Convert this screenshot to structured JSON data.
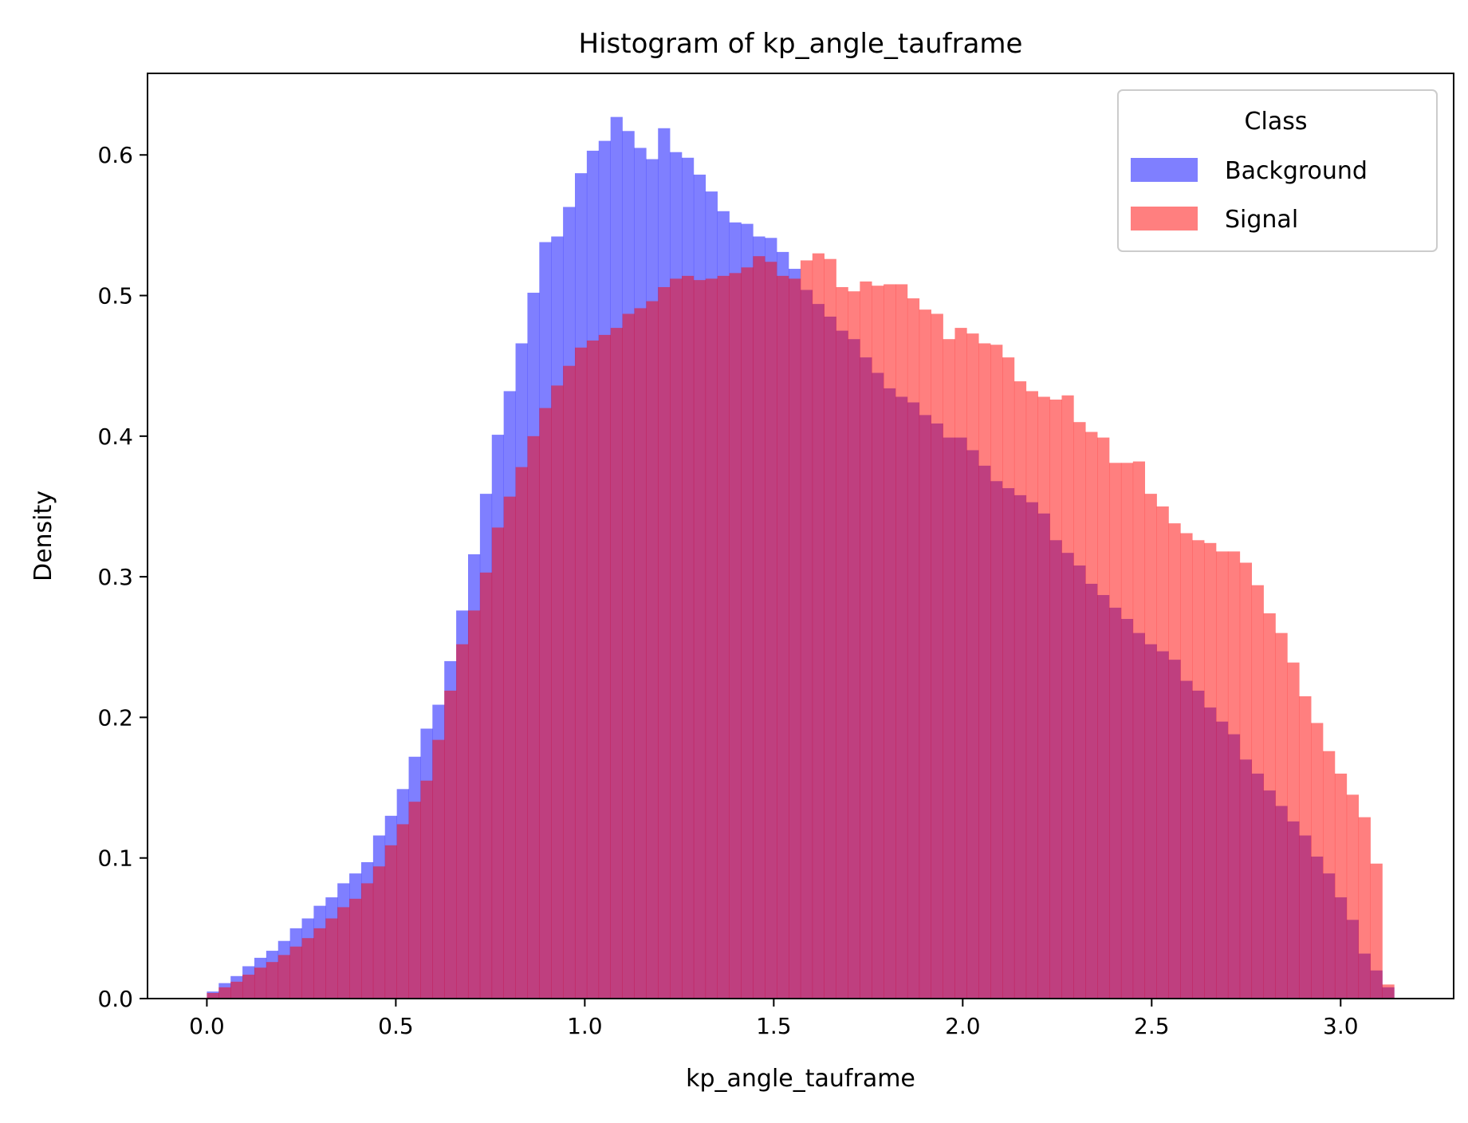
{
  "chart_data": {
    "type": "histogram",
    "title": "Histogram of kp_angle_tauframe",
    "xlabel": "kp_angle_tauframe",
    "ylabel": "Density",
    "xlim": [
      -0.157,
      3.299
    ],
    "ylim": [
      0,
      0.658
    ],
    "xticks": [
      0.0,
      0.5,
      1.0,
      1.5,
      2.0,
      2.5,
      3.0
    ],
    "xtick_labels": [
      "0.0",
      "0.5",
      "1.0",
      "1.5",
      "2.0",
      "2.5",
      "3.0"
    ],
    "yticks": [
      0.0,
      0.1,
      0.2,
      0.3,
      0.4,
      0.5,
      0.6
    ],
    "ytick_labels": [
      "0.0",
      "0.1",
      "0.2",
      "0.3",
      "0.4",
      "0.5",
      "0.6"
    ],
    "grid": false,
    "legend": {
      "title": "Class",
      "position": "top-right"
    },
    "bins": {
      "start": 0.0,
      "end": 3.1416,
      "count": 100
    },
    "series": [
      {
        "name": "Background",
        "color": "#0000ff",
        "alpha": 0.5,
        "values": [
          0.005,
          0.011,
          0.016,
          0.023,
          0.029,
          0.034,
          0.041,
          0.05,
          0.057,
          0.066,
          0.072,
          0.082,
          0.089,
          0.097,
          0.116,
          0.13,
          0.149,
          0.172,
          0.192,
          0.209,
          0.24,
          0.276,
          0.316,
          0.359,
          0.401,
          0.432,
          0.466,
          0.502,
          0.538,
          0.542,
          0.563,
          0.587,
          0.603,
          0.61,
          0.627,
          0.617,
          0.605,
          0.597,
          0.619,
          0.602,
          0.598,
          0.586,
          0.574,
          0.56,
          0.552,
          0.551,
          0.542,
          0.541,
          0.531,
          0.519,
          0.504,
          0.494,
          0.485,
          0.475,
          0.469,
          0.456,
          0.445,
          0.434,
          0.428,
          0.424,
          0.415,
          0.409,
          0.399,
          0.399,
          0.39,
          0.379,
          0.368,
          0.363,
          0.358,
          0.353,
          0.345,
          0.326,
          0.317,
          0.308,
          0.295,
          0.287,
          0.278,
          0.27,
          0.26,
          0.252,
          0.247,
          0.241,
          0.226,
          0.219,
          0.207,
          0.197,
          0.188,
          0.17,
          0.16,
          0.148,
          0.137,
          0.126,
          0.116,
          0.101,
          0.089,
          0.072,
          0.056,
          0.032,
          0.02,
          0.008
        ]
      },
      {
        "name": "Signal",
        "color": "#ff0000",
        "alpha": 0.5,
        "values": [
          0.004,
          0.008,
          0.012,
          0.017,
          0.022,
          0.026,
          0.031,
          0.037,
          0.043,
          0.05,
          0.057,
          0.065,
          0.071,
          0.082,
          0.094,
          0.109,
          0.124,
          0.14,
          0.155,
          0.184,
          0.219,
          0.252,
          0.276,
          0.303,
          0.335,
          0.357,
          0.378,
          0.4,
          0.42,
          0.436,
          0.45,
          0.463,
          0.468,
          0.472,
          0.477,
          0.487,
          0.491,
          0.496,
          0.506,
          0.512,
          0.514,
          0.511,
          0.512,
          0.514,
          0.516,
          0.52,
          0.528,
          0.524,
          0.514,
          0.512,
          0.525,
          0.53,
          0.526,
          0.506,
          0.503,
          0.51,
          0.507,
          0.508,
          0.508,
          0.498,
          0.49,
          0.487,
          0.469,
          0.477,
          0.473,
          0.466,
          0.465,
          0.456,
          0.439,
          0.432,
          0.428,
          0.426,
          0.429,
          0.41,
          0.403,
          0.399,
          0.381,
          0.381,
          0.382,
          0.359,
          0.35,
          0.338,
          0.331,
          0.326,
          0.324,
          0.318,
          0.318,
          0.31,
          0.294,
          0.274,
          0.26,
          0.239,
          0.215,
          0.196,
          0.176,
          0.16,
          0.145,
          0.129,
          0.096,
          0.01
        ]
      }
    ]
  }
}
